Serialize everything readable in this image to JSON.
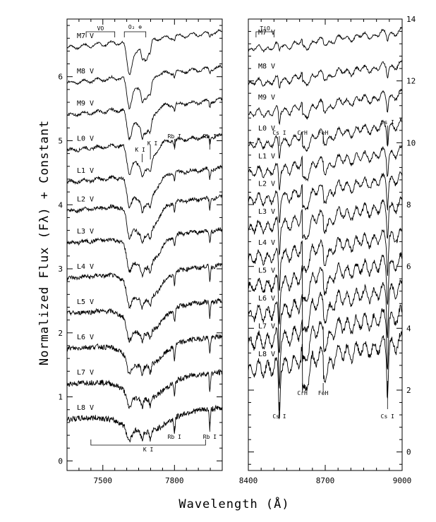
{
  "chart_data": [
    {
      "type": "line",
      "panel": "left",
      "xlabel": "Wavelength (Å)",
      "ylabel": "Normalized Flux (Fλ) + Constant",
      "xlim": [
        7350,
        8000
      ],
      "ylim": [
        -0.15,
        6.9
      ],
      "xticks": [
        7500,
        7800
      ],
      "yticks": [
        0,
        1,
        2,
        3,
        4,
        5,
        6
      ],
      "series": [
        {
          "name": "M7 V",
          "offset": 6.45
        },
        {
          "name": "M8 V",
          "offset": 5.9
        },
        {
          "name": "M9 V",
          "offset": 5.4
        },
        {
          "name": "L0 V",
          "offset": 4.85
        },
        {
          "name": "L1 V",
          "offset": 4.35
        },
        {
          "name": "L2 V",
          "offset": 3.9
        },
        {
          "name": "L3 V",
          "offset": 3.4
        },
        {
          "name": "L4 V",
          "offset": 2.85
        },
        {
          "name": "L5 V",
          "offset": 2.3
        },
        {
          "name": "L6 V",
          "offset": 1.75
        },
        {
          "name": "L7 V",
          "offset": 1.2
        },
        {
          "name": "L8 V",
          "offset": 0.65
        }
      ],
      "annotations": [
        {
          "label": "VO",
          "x": [
            7430,
            7550
          ]
        },
        {
          "label": "O₂ ⊕",
          "x": [
            7590,
            7680
          ]
        },
        {
          "label": "K I",
          "x": 7665
        },
        {
          "label": "K I",
          "x": 7699
        },
        {
          "label": "Rb I",
          "x": 7800
        },
        {
          "label": "Rb I",
          "x": 7948
        },
        {
          "label": "K I",
          "x": [
            7450,
            7930
          ]
        },
        {
          "label": "Rb I",
          "x": 7800
        },
        {
          "label": "Rb I",
          "x": 7948
        }
      ]
    },
    {
      "type": "line",
      "panel": "right",
      "xlim": [
        8400,
        9000
      ],
      "ylim": [
        -0.6,
        14
      ],
      "xticks": [
        8400,
        8700,
        9000
      ],
      "yticks": [
        0,
        2,
        4,
        6,
        8,
        10,
        12,
        14
      ],
      "series": [
        {
          "name": "M7 V",
          "offset": 13.0
        },
        {
          "name": "M8 V",
          "offset": 11.9
        },
        {
          "name": "M9 V",
          "offset": 10.9
        },
        {
          "name": "L0 V",
          "offset": 9.9
        },
        {
          "name": "L1 V",
          "offset": 9.0
        },
        {
          "name": "L2 V",
          "offset": 8.1
        },
        {
          "name": "L3 V",
          "offset": 7.2
        },
        {
          "name": "L4 V",
          "offset": 6.2
        },
        {
          "name": "L5 V",
          "offset": 5.3
        },
        {
          "name": "L6 V",
          "offset": 4.4
        },
        {
          "name": "L7 V",
          "offset": 3.5
        },
        {
          "name": "L8 V",
          "offset": 2.6
        }
      ],
      "annotations": [
        {
          "label": "TiO",
          "x": [
            8430,
            8500
          ]
        },
        {
          "label": "Cs I",
          "x": 8521
        },
        {
          "label": "CrH",
          "x": 8611
        },
        {
          "label": "FeH",
          "x": 8692
        },
        {
          "label": "Cs I",
          "x": 8943
        },
        {
          "label": "Cs I",
          "x": 8521
        },
        {
          "label": "CrH",
          "x": 8611
        },
        {
          "label": "FeH",
          "x": 8692
        },
        {
          "label": "Cs I",
          "x": 8943
        }
      ]
    }
  ]
}
